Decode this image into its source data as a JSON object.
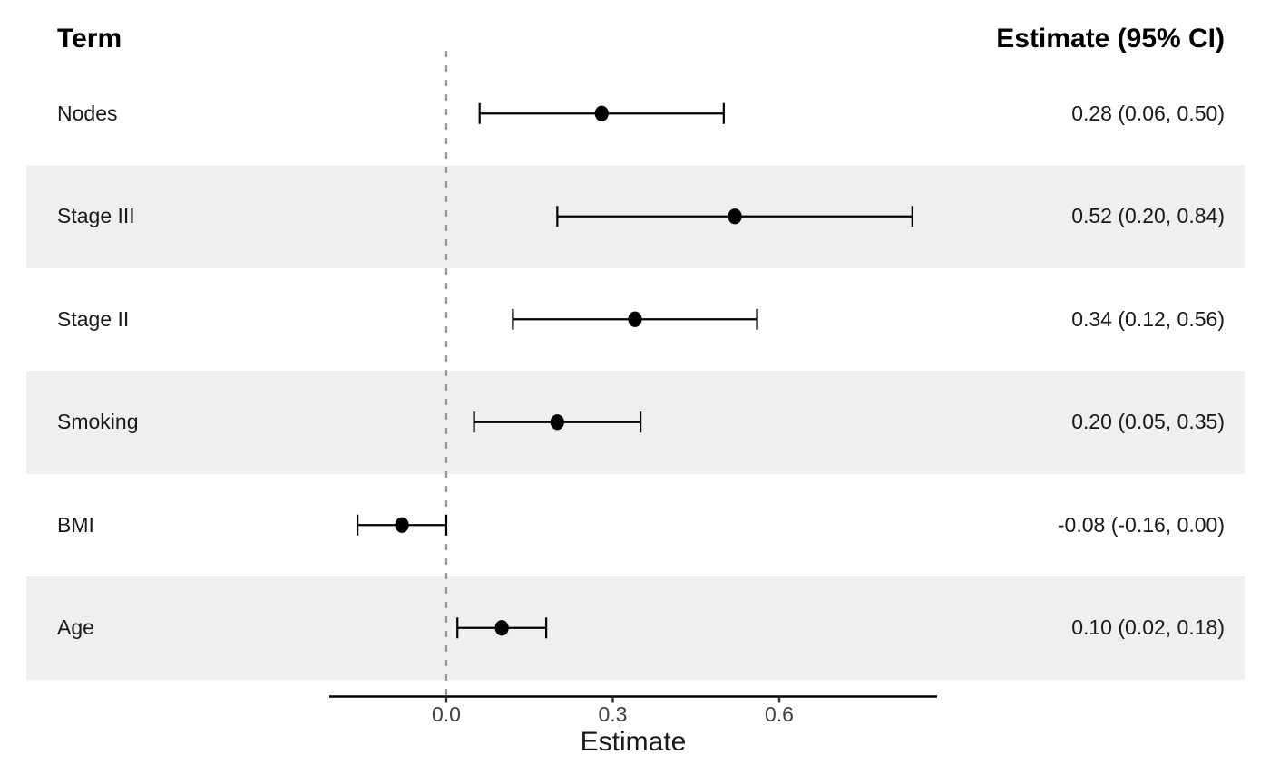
{
  "chart_data": {
    "type": "scatter",
    "subtype": "forest-plot",
    "title": "",
    "xlabel": "Estimate",
    "ylabel": "",
    "xlim": [
      -0.211,
      0.885
    ],
    "x_ticks": [
      0,
      0.3,
      0.6
    ],
    "x_tick_labels": [
      "0.0",
      "0.3",
      "0.6"
    ],
    "reference_line_x": 0,
    "grid": false,
    "legend": false,
    "columns": {
      "term_header": "Term",
      "estimate_header": "Estimate (95% CI)"
    },
    "rows": [
      {
        "term": "Nodes",
        "estimate": 0.28,
        "ci_low": 0.06,
        "ci_high": 0.5,
        "display": "0.28 (0.06, 0.50)",
        "striped": false
      },
      {
        "term": "Stage III",
        "estimate": 0.52,
        "ci_low": 0.2,
        "ci_high": 0.84,
        "display": "0.52 (0.20, 0.84)",
        "striped": true
      },
      {
        "term": "Stage II",
        "estimate": 0.34,
        "ci_low": 0.12,
        "ci_high": 0.56,
        "display": "0.34 (0.12, 0.56)",
        "striped": false
      },
      {
        "term": "Smoking",
        "estimate": 0.2,
        "ci_low": 0.05,
        "ci_high": 0.35,
        "display": "0.20 (0.05, 0.35)",
        "striped": true
      },
      {
        "term": "BMI",
        "estimate": -0.08,
        "ci_low": -0.16,
        "ci_high": 0.0,
        "display": "-0.08 (-0.16, 0.00)",
        "striped": false
      },
      {
        "term": "Age",
        "estimate": 0.1,
        "ci_low": 0.02,
        "ci_high": 0.18,
        "display": "0.10 (0.02, 0.18)",
        "striped": true
      }
    ],
    "colors": {
      "stripe": "#efefef",
      "marks": "#000000",
      "reference_line": "#999999",
      "axis_line": "#000000",
      "tick": "#333333",
      "tick_label": "#404040",
      "text": "#1a1a1a"
    }
  }
}
